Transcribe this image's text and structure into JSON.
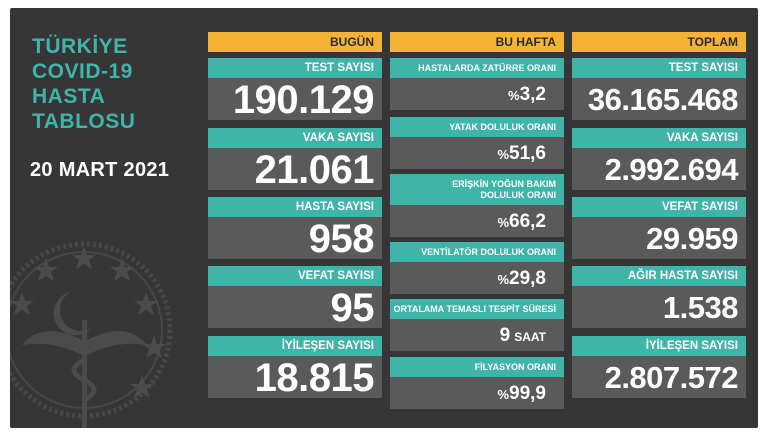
{
  "sidebar": {
    "title_lines": [
      "TÜRKİYE",
      "COVID-19",
      "HASTA",
      "TABLOSU"
    ],
    "date": "20 MART 2021"
  },
  "colors": {
    "accent_teal": "#3fb5aa",
    "header_orange": "#f5b335",
    "background": "#363636",
    "value_box": "#5a5a5a"
  },
  "today": {
    "header": "BUGÜN",
    "items": [
      {
        "label": "TEST SAYISI",
        "value": "190.129"
      },
      {
        "label": "VAKA SAYISI",
        "value": "21.061"
      },
      {
        "label": "HASTA SAYISI",
        "value": "958"
      },
      {
        "label": "VEFAT SAYISI",
        "value": "95"
      },
      {
        "label": "İYİLEŞEN SAYISI",
        "value": "18.815"
      }
    ]
  },
  "week": {
    "header": "BU HAFTA",
    "items": [
      {
        "label": "HASTALARDA ZATÜRRE ORANI",
        "prefix": "%",
        "value": "3,2"
      },
      {
        "label": "YATAK DOLULUK ORANI",
        "prefix": "%",
        "value": "51,6"
      },
      {
        "label": "ERİŞKİN YOĞUN BAKIM DOLULUK ORANI",
        "prefix": "%",
        "value": "66,2"
      },
      {
        "label": "VENTİLATÖR DOLULUK ORANI",
        "prefix": "%",
        "value": "29,8"
      },
      {
        "label": "ORTALAMA TEMASLI TESPİT SÜRESİ",
        "value": "9",
        "unit": "SAAT"
      },
      {
        "label": "FİLYASYON ORANI",
        "prefix": "%",
        "value": "99,9"
      }
    ]
  },
  "total": {
    "header": "TOPLAM",
    "items": [
      {
        "label": "TEST SAYISI",
        "value": "36.165.468"
      },
      {
        "label": "VAKA SAYISI",
        "value": "2.992.694"
      },
      {
        "label": "VEFAT SAYISI",
        "value": "29.959"
      },
      {
        "label": "AĞIR HASTA SAYISI",
        "value": "1.538"
      },
      {
        "label": "İYİLEŞEN SAYISI",
        "value": "2.807.572"
      }
    ]
  },
  "icons": {
    "emblem": "ministry-of-health-emblem-icon"
  }
}
